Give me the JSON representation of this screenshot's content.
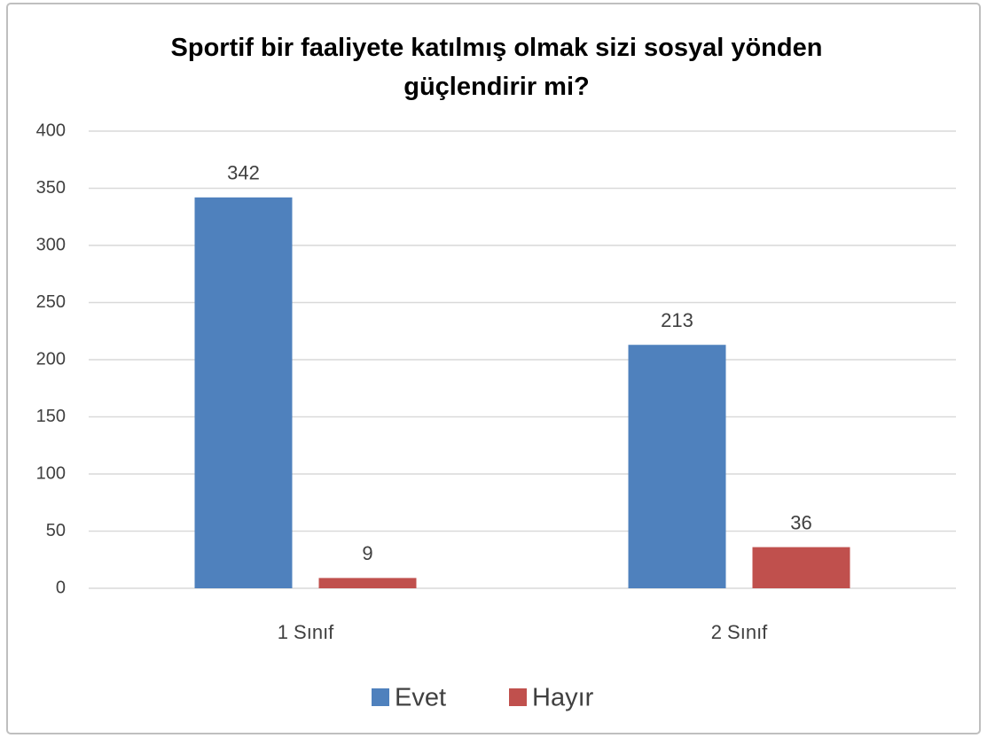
{
  "chart_data": {
    "type": "bar",
    "title": "Sportif bir faaliyete katılmış olmak sizi sosyal yönden güçlendirir mi?",
    "categories": [
      "1 Sınıf",
      "2 Sınıf"
    ],
    "series": [
      {
        "name": "Evet",
        "color": "#4f81bd",
        "values": [
          342,
          213
        ]
      },
      {
        "name": "Hayır",
        "color": "#c0504d",
        "values": [
          9,
          36
        ]
      }
    ],
    "ylim": [
      0,
      400
    ],
    "yticks": [
      0,
      50,
      100,
      150,
      200,
      250,
      300,
      350,
      400
    ],
    "grid": true,
    "legend": "bottom"
  }
}
